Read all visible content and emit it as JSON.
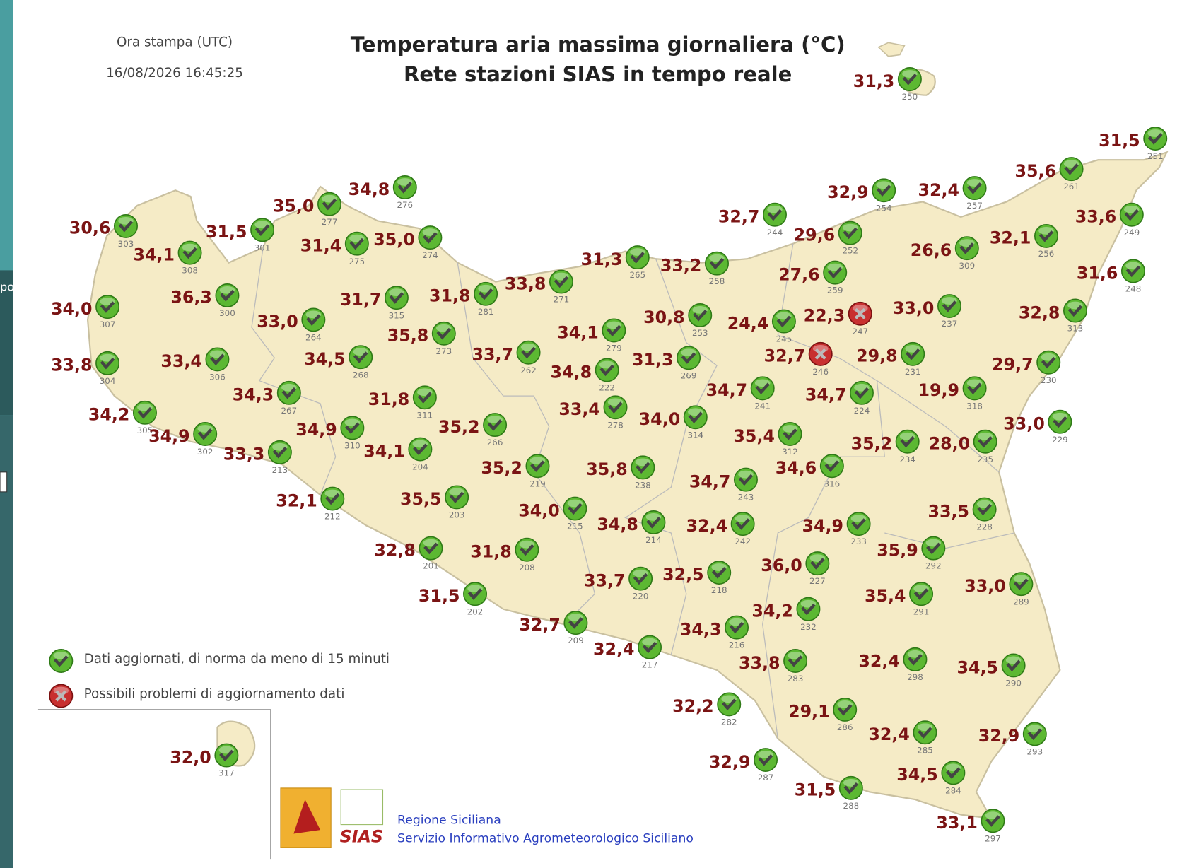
{
  "sidebar": {
    "fragment": "po"
  },
  "header": {
    "print_label": "Ora stampa (UTC)",
    "print_time": "16/08/2026 16:45:25",
    "title": "Temperatura aria massima giornaliera (°C)",
    "subtitle": "Rete stazioni SIAS in tempo reale"
  },
  "stations": [
    {
      "temp": "30,6",
      "id": "303",
      "status": "ok"
    },
    {
      "temp": "34,1",
      "id": "308",
      "status": "ok"
    },
    {
      "temp": "31,5",
      "id": "301",
      "status": "ok"
    },
    {
      "temp": "35,0",
      "id": "277",
      "status": "ok"
    },
    {
      "temp": "34,8",
      "id": "276",
      "status": "ok"
    },
    {
      "temp": "31,4",
      "id": "275",
      "status": "ok"
    },
    {
      "temp": "35,0",
      "id": "274",
      "status": "ok"
    },
    {
      "temp": "36,3",
      "id": "300",
      "status": "ok"
    },
    {
      "temp": "34,0",
      "id": "307",
      "status": "ok"
    },
    {
      "temp": "33,0",
      "id": "264",
      "status": "ok"
    },
    {
      "temp": "31,7",
      "id": "315",
      "status": "ok"
    },
    {
      "temp": "31,8",
      "id": "281",
      "status": "ok"
    },
    {
      "temp": "33,8",
      "id": "271",
      "status": "ok"
    },
    {
      "temp": "31,3",
      "id": "265",
      "status": "ok"
    },
    {
      "temp": "33,2",
      "id": "258",
      "status": "ok"
    },
    {
      "temp": "33,8",
      "id": "304",
      "status": "ok"
    },
    {
      "temp": "33,4",
      "id": "306",
      "status": "ok"
    },
    {
      "temp": "35,8",
      "id": "273",
      "status": "ok"
    },
    {
      "temp": "34,5",
      "id": "268",
      "status": "ok"
    },
    {
      "temp": "34,1",
      "id": "279",
      "status": "ok"
    },
    {
      "temp": "33,7",
      "id": "262",
      "status": "ok"
    },
    {
      "temp": "30,8",
      "id": "253",
      "status": "ok"
    },
    {
      "temp": "24,4",
      "id": "245",
      "status": "ok"
    },
    {
      "temp": "22,3",
      "id": "247",
      "status": "error"
    },
    {
      "temp": "33,0",
      "id": "237",
      "status": "ok"
    },
    {
      "temp": "34,3",
      "id": "267",
      "status": "ok"
    },
    {
      "temp": "34,8",
      "id": "222",
      "status": "ok"
    },
    {
      "temp": "31,3",
      "id": "269",
      "status": "ok"
    },
    {
      "temp": "32,7",
      "id": "246",
      "status": "error"
    },
    {
      "temp": "29,8",
      "id": "231",
      "status": "ok"
    },
    {
      "temp": "34,2",
      "id": "305",
      "status": "ok"
    },
    {
      "temp": "31,8",
      "id": "311",
      "status": "ok"
    },
    {
      "temp": "34,7",
      "id": "241",
      "status": "ok"
    },
    {
      "temp": "34,7",
      "id": "224",
      "status": "ok"
    },
    {
      "temp": "19,9",
      "id": "318",
      "status": "ok"
    },
    {
      "temp": "34,9",
      "id": "302",
      "status": "ok"
    },
    {
      "temp": "34,9",
      "id": "310",
      "status": "ok"
    },
    {
      "temp": "33,4",
      "id": "278",
      "status": "ok"
    },
    {
      "temp": "34,0",
      "id": "314",
      "status": "ok"
    },
    {
      "temp": "35,2",
      "id": "266",
      "status": "ok"
    },
    {
      "temp": "33,3",
      "id": "213",
      "status": "ok"
    },
    {
      "temp": "34,1",
      "id": "204",
      "status": "ok"
    },
    {
      "temp": "35,4",
      "id": "312",
      "status": "ok"
    },
    {
      "temp": "35,2",
      "id": "234",
      "status": "ok"
    },
    {
      "temp": "28,0",
      "id": "235",
      "status": "ok"
    },
    {
      "temp": "33,0",
      "id": "229",
      "status": "ok"
    },
    {
      "temp": "35,2",
      "id": "219",
      "status": "ok"
    },
    {
      "temp": "35,8",
      "id": "238",
      "status": "ok"
    },
    {
      "temp": "34,6",
      "id": "316",
      "status": "ok"
    },
    {
      "temp": "34,7",
      "id": "243",
      "status": "ok"
    },
    {
      "temp": "32,1",
      "id": "212",
      "status": "ok"
    },
    {
      "temp": "35,5",
      "id": "203",
      "status": "ok"
    },
    {
      "temp": "34,0",
      "id": "215",
      "status": "ok"
    },
    {
      "temp": "34,8",
      "id": "214",
      "status": "ok"
    },
    {
      "temp": "32,4",
      "id": "242",
      "status": "ok"
    },
    {
      "temp": "34,9",
      "id": "233",
      "status": "ok"
    },
    {
      "temp": "33,5",
      "id": "228",
      "status": "ok"
    },
    {
      "temp": "32,8",
      "id": "201",
      "status": "ok"
    },
    {
      "temp": "31,8",
      "id": "208",
      "status": "ok"
    },
    {
      "temp": "36,0",
      "id": "227",
      "status": "ok"
    },
    {
      "temp": "35,9",
      "id": "292",
      "status": "ok"
    },
    {
      "temp": "33,7",
      "id": "220",
      "status": "ok"
    },
    {
      "temp": "32,5",
      "id": "218",
      "status": "ok"
    },
    {
      "temp": "33,0",
      "id": "289",
      "status": "ok"
    },
    {
      "temp": "35,4",
      "id": "291",
      "status": "ok"
    },
    {
      "temp": "31,5",
      "id": "202",
      "status": "ok"
    },
    {
      "temp": "34,2",
      "id": "232",
      "status": "ok"
    },
    {
      "temp": "34,3",
      "id": "216",
      "status": "ok"
    },
    {
      "temp": "32,7",
      "id": "209",
      "status": "ok"
    },
    {
      "temp": "32,4",
      "id": "217",
      "status": "ok"
    },
    {
      "temp": "33,8",
      "id": "283",
      "status": "ok"
    },
    {
      "temp": "32,4",
      "id": "298",
      "status": "ok"
    },
    {
      "temp": "34,5",
      "id": "290",
      "status": "ok"
    },
    {
      "temp": "32,2",
      "id": "282",
      "status": "ok"
    },
    {
      "temp": "29,1",
      "id": "286",
      "status": "ok"
    },
    {
      "temp": "32,4",
      "id": "285",
      "status": "ok"
    },
    {
      "temp": "32,9",
      "id": "293",
      "status": "ok"
    },
    {
      "temp": "32,9",
      "id": "287",
      "status": "ok"
    },
    {
      "temp": "34,5",
      "id": "284",
      "status": "ok"
    },
    {
      "temp": "31,5",
      "id": "288",
      "status": "ok"
    },
    {
      "temp": "33,1",
      "id": "297",
      "status": "ok"
    },
    {
      "temp": "32,0",
      "id": "317",
      "status": "ok"
    },
    {
      "temp": "31,3",
      "id": "250",
      "status": "ok"
    },
    {
      "temp": "32,7",
      "id": "244",
      "status": "ok"
    },
    {
      "temp": "32,9",
      "id": "254",
      "status": "ok"
    },
    {
      "temp": "32,4",
      "id": "257",
      "status": "ok"
    },
    {
      "temp": "35,6",
      "id": "261",
      "status": "ok"
    },
    {
      "temp": "31,5",
      "id": "251",
      "status": "ok"
    },
    {
      "temp": "29,6",
      "id": "252",
      "status": "ok"
    },
    {
      "temp": "33,6",
      "id": "249",
      "status": "ok"
    },
    {
      "temp": "32,1",
      "id": "256",
      "status": "ok"
    },
    {
      "temp": "26,6",
      "id": "309",
      "status": "ok"
    },
    {
      "temp": "27,6",
      "id": "259",
      "status": "ok"
    },
    {
      "temp": "31,6",
      "id": "248",
      "status": "ok"
    },
    {
      "temp": "32,8",
      "id": "313",
      "status": "ok"
    },
    {
      "temp": "29,7",
      "id": "230",
      "status": "ok"
    }
  ],
  "legend": {
    "ok": "Dati aggiornati, di norma da meno di 15 minuti",
    "error": "Possibili problemi di aggiornamento dati"
  },
  "footer": {
    "logo_text": "SIAS",
    "org": "Regione Siciliana",
    "service": "Servizio Informativo Agrometeorologico Siciliano"
  }
}
